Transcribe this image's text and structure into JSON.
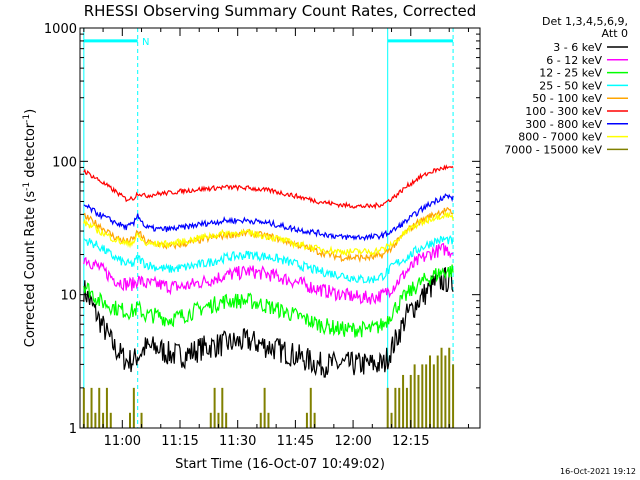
{
  "chart_data": {
    "type": "line",
    "title": "RHESSI Observing Summary Count Rates, Corrected",
    "xlabel": "Start Time (16-Oct-07 10:49:02)",
    "ylabel_main": "Corrected Count Rate (s",
    "ylabel_sup1": "-1",
    "ylabel_mid": " detector",
    "ylabel_sup2": "-1",
    "ylabel_end": ")",
    "yscale": "log",
    "ylim": [
      1,
      1000
    ],
    "xlim_minutes": [
      0,
      104
    ],
    "x_unit": "minutes after start time",
    "x_ticks": [
      {
        "minute": 11,
        "label": "11:00"
      },
      {
        "minute": 26,
        "label": "11:15"
      },
      {
        "minute": 41,
        "label": "11:30"
      },
      {
        "minute": 56,
        "label": "11:45"
      },
      {
        "minute": 71,
        "label": "12:00"
      },
      {
        "minute": 86,
        "label": "12:15"
      }
    ],
    "y_ticks": [
      {
        "value": 1,
        "label": "1"
      },
      {
        "value": 10,
        "label": "10"
      },
      {
        "value": 100,
        "label": "100"
      },
      {
        "value": 1000,
        "label": "1000"
      }
    ],
    "legend_header": [
      "Det 1,3,4,5,6,9,",
      "Att 0"
    ],
    "legend_position": "right, outside plot",
    "time_stamp": "16-Oct-2021 19:12",
    "night_marks": [
      {
        "minute": 15,
        "label": "N"
      }
    ],
    "vertical_markers_minutes": [
      1,
      15,
      80,
      97
    ],
    "bar_markers": [
      {
        "start": 1,
        "end": 15,
        "value": 800
      },
      {
        "start": 80,
        "end": 97,
        "value": 800
      }
    ],
    "x": [
      1,
      5,
      9,
      12,
      14,
      15,
      17,
      20,
      23,
      27,
      32,
      38,
      44,
      50,
      56,
      62,
      68,
      73,
      76,
      79,
      82,
      85,
      88,
      92,
      95,
      97
    ],
    "series": [
      {
        "name": "3 - 6 keV",
        "color": "#000000",
        "values": [
          11,
          6.5,
          4,
          3.2,
          3.2,
          3.5,
          4,
          4,
          3.6,
          3.5,
          4,
          4.3,
          4.5,
          4,
          3.5,
          3,
          3,
          3,
          3,
          3,
          4.5,
          7,
          9,
          12,
          13,
          12
        ]
      },
      {
        "name": "6 - 12 keV",
        "color": "#ff00ff",
        "values": [
          19,
          16,
          13,
          12,
          12,
          13,
          12,
          12,
          11.5,
          11.5,
          12.5,
          14,
          15,
          14,
          12.5,
          11,
          10,
          9.5,
          9.5,
          10,
          12,
          15,
          18,
          21,
          22,
          21
        ]
      },
      {
        "name": "12 - 25 keV",
        "color": "#00ff00",
        "values": [
          12,
          9,
          8,
          7.5,
          7.5,
          8,
          7,
          7,
          6.5,
          7,
          8,
          9,
          9,
          8,
          7,
          6,
          5.5,
          5.5,
          5.5,
          6,
          8,
          10,
          12,
          14,
          15,
          15
        ]
      },
      {
        "name": "25 - 50 keV",
        "color": "#00ffff",
        "values": [
          26,
          23,
          19,
          17,
          17,
          19,
          17,
          16,
          15.5,
          16,
          17,
          19,
          20,
          19,
          17,
          15,
          14,
          13,
          13,
          14,
          17,
          19,
          22,
          25,
          26,
          25
        ]
      },
      {
        "name": "50 - 100 keV",
        "color": "#ffa500",
        "values": [
          39,
          33,
          27,
          25,
          26,
          30,
          25,
          24,
          23,
          24,
          26,
          28,
          29,
          27,
          24,
          21,
          19,
          19,
          19,
          20,
          24,
          30,
          35,
          40,
          43,
          41
        ]
      },
      {
        "name": "100 - 300 keV",
        "color": "#ff0000",
        "values": [
          85,
          72,
          60,
          52,
          53,
          58,
          55,
          57,
          58,
          60,
          62,
          64,
          63,
          60,
          55,
          50,
          47,
          46,
          46,
          48,
          55,
          65,
          75,
          85,
          90,
          88
        ]
      },
      {
        "name": "300 - 800 keV",
        "color": "#0000ff",
        "values": [
          47,
          40,
          35,
          32,
          34,
          40,
          32,
          31,
          31,
          32,
          34,
          36,
          36,
          34,
          31,
          29,
          27,
          27,
          27,
          28,
          31,
          36,
          42,
          50,
          55,
          53
        ]
      },
      {
        "name": "800 - 7000 keV",
        "color": "#ffff00",
        "values": [
          35,
          30,
          26,
          24,
          25,
          28,
          24,
          24,
          24,
          25,
          27,
          29,
          29,
          27,
          24,
          22,
          21,
          21,
          21,
          22,
          25,
          30,
          34,
          38,
          40,
          38
        ]
      },
      {
        "name": "7000 - 15000 keV",
        "color": "#808000",
        "values": [
          1.5,
          1.5,
          1.2,
          1,
          1,
          1,
          1,
          1,
          1,
          1,
          1,
          1,
          1,
          1,
          1,
          1,
          1,
          1,
          1,
          1,
          1.5,
          2,
          2.5,
          3,
          3,
          3
        ]
      }
    ],
    "sparse_points": {
      "series": "7000 - 15000 keV",
      "minutes": [
        1,
        2,
        3,
        4,
        5,
        6,
        7,
        8,
        13,
        14,
        16,
        34,
        35,
        36,
        37,
        38,
        47,
        48,
        49,
        59,
        60,
        61,
        80,
        81,
        82,
        83,
        84,
        85,
        86,
        87,
        88,
        89,
        90,
        91,
        92,
        93,
        94,
        95,
        96,
        97
      ],
      "values": [
        2,
        1.3,
        2,
        1.3,
        2,
        1.3,
        2,
        1.3,
        1.3,
        2,
        1.3,
        1.3,
        2,
        1.3,
        2,
        1.3,
        1.3,
        2,
        1.3,
        1.3,
        2,
        1.3,
        2,
        1.3,
        2,
        2,
        2.5,
        2,
        2.5,
        3,
        2.5,
        3,
        3,
        3.5,
        3,
        3.5,
        4,
        3.5,
        4,
        3
      ]
    }
  }
}
